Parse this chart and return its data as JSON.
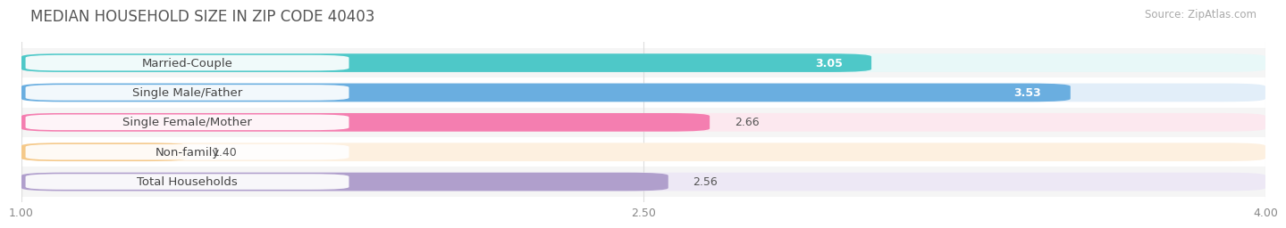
{
  "title": "MEDIAN HOUSEHOLD SIZE IN ZIP CODE 40403",
  "source": "Source: ZipAtlas.com",
  "categories": [
    "Married-Couple",
    "Single Male/Father",
    "Single Female/Mother",
    "Non-family",
    "Total Households"
  ],
  "values": [
    3.05,
    3.53,
    2.66,
    1.4,
    2.56
  ],
  "bar_colors": [
    "#4EC8C8",
    "#6AAEE0",
    "#F47EB0",
    "#F5C98A",
    "#B09FCC"
  ],
  "bar_bg_colors": [
    "#E8F8F8",
    "#E2EEF9",
    "#FCE8EF",
    "#FDF0E0",
    "#EDE8F5"
  ],
  "value_in_bar": [
    true,
    true,
    false,
    false,
    false
  ],
  "xmin": 1.0,
  "xmax": 4.0,
  "xticks": [
    1.0,
    2.5,
    4.0
  ],
  "xtick_labels": [
    "1.00",
    "2.50",
    "4.00"
  ],
  "label_fontsize": 9.5,
  "value_fontsize": 9.0,
  "title_fontsize": 12,
  "source_fontsize": 8.5,
  "background_color": "#ffffff",
  "row_bg_even": "#f5f5f5",
  "row_bg_odd": "#ffffff"
}
